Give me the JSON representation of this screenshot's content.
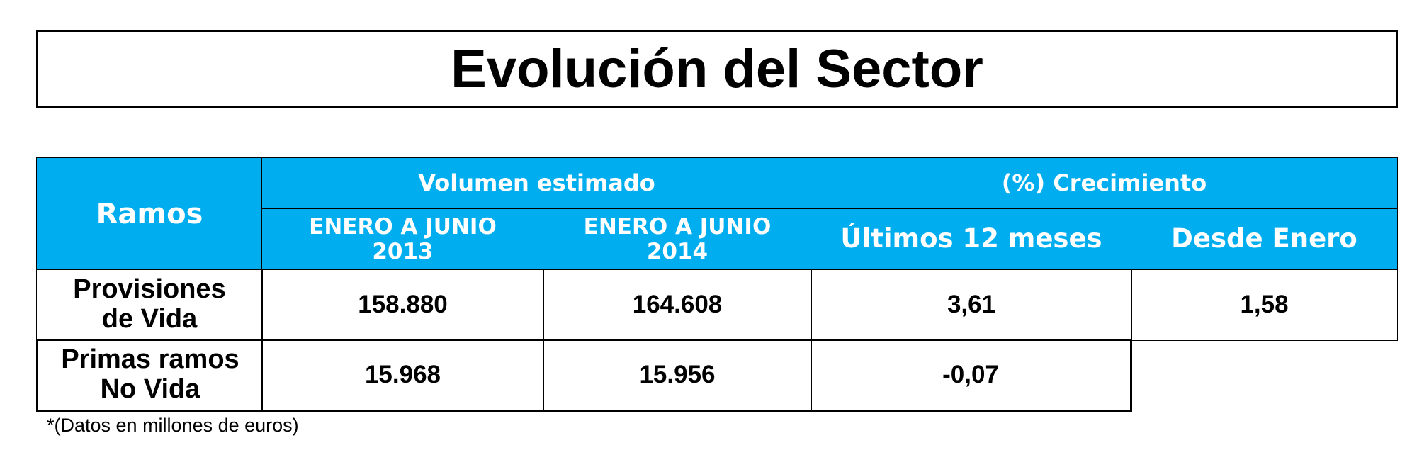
{
  "header": {
    "title": "Evolución del Sector"
  },
  "table": {
    "ramos_header": "Ramos",
    "group_headers": [
      "Volumen estimado",
      "(%) Crecimiento"
    ],
    "column_headers": [
      "ENERO A JUNIO\n2013",
      "ENERO A JUNIO\n2014",
      "Últimos 12 meses",
      "Desde Enero"
    ],
    "rows": [
      {
        "label": "Provisiones\nde Vida",
        "values": [
          "158.880",
          "164.608",
          "3,61",
          "1,58"
        ]
      },
      {
        "label": "Primas ramos\nNo Vida",
        "values": [
          "15.968",
          "15.956",
          "-0,07"
        ]
      }
    ]
  },
  "footnote": "*(Datos en millones de euros)"
}
